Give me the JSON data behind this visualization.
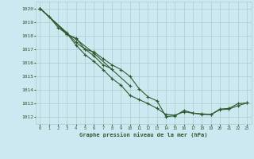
{
  "title": "Graphe pression niveau de la mer (hPa)",
  "bg_color": "#cce8f0",
  "grid_color": "#aacccc",
  "line_color": "#2d5a2d",
  "xlim": [
    -0.5,
    23.5
  ],
  "ylim": [
    1011.5,
    1020.5
  ],
  "yticks": [
    1012,
    1013,
    1014,
    1015,
    1016,
    1017,
    1018,
    1019,
    1020
  ],
  "xticks": [
    0,
    1,
    2,
    3,
    4,
    5,
    6,
    7,
    8,
    9,
    10,
    11,
    12,
    13,
    14,
    15,
    16,
    17,
    18,
    19,
    20,
    21,
    22,
    23
  ],
  "series": [
    [
      1020.0,
      1019.4,
      1018.6,
      1018.1,
      1017.8,
      1017.0,
      1016.8,
      1016.3,
      1015.85,
      1015.5,
      1015.0,
      1014.1,
      1013.5,
      1013.2,
      1012.05,
      1012.1,
      1012.5,
      1012.3,
      1012.2,
      1012.2,
      1012.6,
      1012.65,
      1013.0,
      1013.05
    ],
    [
      1020.0,
      null,
      null,
      1018.1,
      1017.75,
      null,
      1016.7,
      null,
      null,
      null,
      1014.3,
      null,
      null,
      null,
      null,
      null,
      null,
      null,
      null,
      null,
      null,
      null,
      null,
      null
    ],
    [
      1020.0,
      null,
      null,
      1018.2,
      1017.5,
      1017.0,
      1016.5,
      1015.85,
      1015.55,
      null,
      null,
      null,
      null,
      null,
      null,
      null,
      null,
      null,
      null,
      null,
      null,
      null,
      null,
      null
    ],
    [
      1020.0,
      null,
      null,
      1018.15,
      1017.3,
      1016.6,
      1016.1,
      1015.5,
      1014.85,
      1014.35,
      1013.6,
      1013.3,
      1013.0,
      1012.65,
      1012.2,
      1012.15,
      1012.4,
      1012.3,
      1012.25,
      1012.2,
      1012.55,
      1012.6,
      1012.85,
      1013.05
    ]
  ]
}
